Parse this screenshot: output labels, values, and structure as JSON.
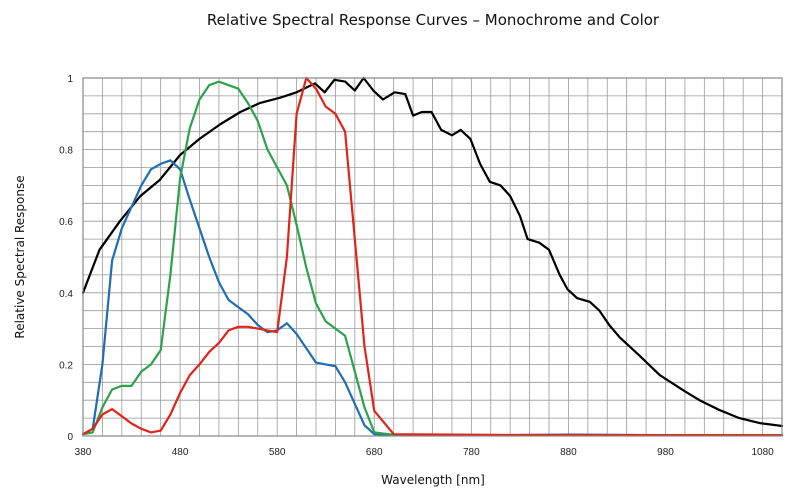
{
  "chart_data": {
    "type": "line",
    "title": "Relative Spectral Response Curves – Monochrome and Color",
    "xlabel": "Wavelength [nm]",
    "ylabel": "Relative Spectral Response",
    "xlim": [
      380,
      1100
    ],
    "ylim": [
      0,
      1
    ],
    "x_ticks": [
      380,
      480,
      580,
      680,
      780,
      880,
      980,
      1080
    ],
    "x_tick_labels": [
      "380",
      "480",
      "580",
      "680",
      "780",
      "880",
      "980",
      "1080"
    ],
    "y_ticks": [
      0,
      0.2,
      0.4,
      0.6,
      0.8,
      1
    ],
    "y_tick_labels": [
      "0",
      "0.2",
      "0.4",
      "0.6",
      "0.8",
      "1"
    ],
    "x_minor_step": 20,
    "y_minor_step": 0.05,
    "grid": true,
    "legend": "none",
    "series": [
      {
        "name": "Monochrome",
        "color": "#000000",
        "x": [
          380,
          397,
          418,
          439,
          459,
          480,
          500,
          521,
          542,
          562,
          583,
          600,
          619,
          629,
          639,
          650,
          660,
          669,
          679,
          689,
          701,
          712,
          720,
          729,
          739,
          749,
          760,
          769,
          779,
          789,
          799,
          810,
          820,
          830,
          838,
          850,
          860,
          871,
          879,
          889,
          902,
          912,
          922,
          933,
          953,
          974,
          1000,
          1015,
          1036,
          1056,
          1077,
          1100
        ],
        "y": [
          0.4,
          0.52,
          0.6,
          0.67,
          0.715,
          0.785,
          0.83,
          0.87,
          0.905,
          0.93,
          0.945,
          0.96,
          0.985,
          0.96,
          0.995,
          0.99,
          0.965,
          1.0,
          0.965,
          0.94,
          0.96,
          0.955,
          0.895,
          0.905,
          0.905,
          0.855,
          0.84,
          0.855,
          0.83,
          0.76,
          0.71,
          0.7,
          0.67,
          0.615,
          0.55,
          0.54,
          0.52,
          0.45,
          0.41,
          0.385,
          0.375,
          0.35,
          0.31,
          0.275,
          0.225,
          0.17,
          0.125,
          0.1,
          0.072,
          0.05,
          0.036,
          0.028
        ]
      },
      {
        "name": "Blue",
        "color": "#1f6db5",
        "x": [
          380,
          390,
          400,
          410,
          420,
          430,
          440,
          450,
          460,
          470,
          480,
          490,
          500,
          510,
          520,
          530,
          540,
          550,
          560,
          570,
          580,
          590,
          600,
          610,
          620,
          630,
          640,
          650,
          660,
          670,
          680,
          700,
          800,
          880,
          1000,
          1100
        ],
        "y": [
          0.005,
          0.02,
          0.2,
          0.49,
          0.58,
          0.64,
          0.7,
          0.745,
          0.76,
          0.77,
          0.745,
          0.66,
          0.58,
          0.5,
          0.43,
          0.38,
          0.36,
          0.34,
          0.31,
          0.29,
          0.295,
          0.315,
          0.285,
          0.245,
          0.205,
          0.2,
          0.195,
          0.15,
          0.09,
          0.03,
          0.005,
          0.003,
          0.002,
          0.004,
          0.002,
          0.002
        ]
      },
      {
        "name": "Green",
        "color": "#2ca24a",
        "x": [
          380,
          390,
          400,
          410,
          420,
          430,
          440,
          450,
          460,
          470,
          480,
          490,
          500,
          510,
          520,
          530,
          540,
          550,
          560,
          570,
          580,
          590,
          600,
          610,
          620,
          630,
          640,
          650,
          660,
          670,
          680,
          700,
          800,
          1100
        ],
        "y": [
          0.005,
          0.01,
          0.08,
          0.13,
          0.14,
          0.14,
          0.18,
          0.2,
          0.24,
          0.45,
          0.72,
          0.86,
          0.94,
          0.98,
          0.99,
          0.98,
          0.97,
          0.93,
          0.88,
          0.8,
          0.75,
          0.7,
          0.59,
          0.47,
          0.37,
          0.32,
          0.3,
          0.28,
          0.18,
          0.08,
          0.01,
          0.003,
          0.002,
          0.002
        ]
      },
      {
        "name": "Red",
        "color": "#e2231a",
        "x": [
          380,
          390,
          400,
          410,
          420,
          430,
          440,
          450,
          460,
          470,
          480,
          490,
          500,
          510,
          520,
          530,
          540,
          550,
          560,
          570,
          580,
          590,
          600,
          610,
          620,
          630,
          640,
          650,
          660,
          670,
          680,
          700,
          800,
          1100
        ],
        "y": [
          0.005,
          0.02,
          0.06,
          0.075,
          0.055,
          0.035,
          0.02,
          0.01,
          0.015,
          0.06,
          0.12,
          0.17,
          0.2,
          0.235,
          0.26,
          0.295,
          0.305,
          0.305,
          0.3,
          0.295,
          0.29,
          0.5,
          0.9,
          1.0,
          0.97,
          0.92,
          0.9,
          0.85,
          0.55,
          0.25,
          0.07,
          0.005,
          0.003,
          0.002
        ]
      }
    ]
  }
}
